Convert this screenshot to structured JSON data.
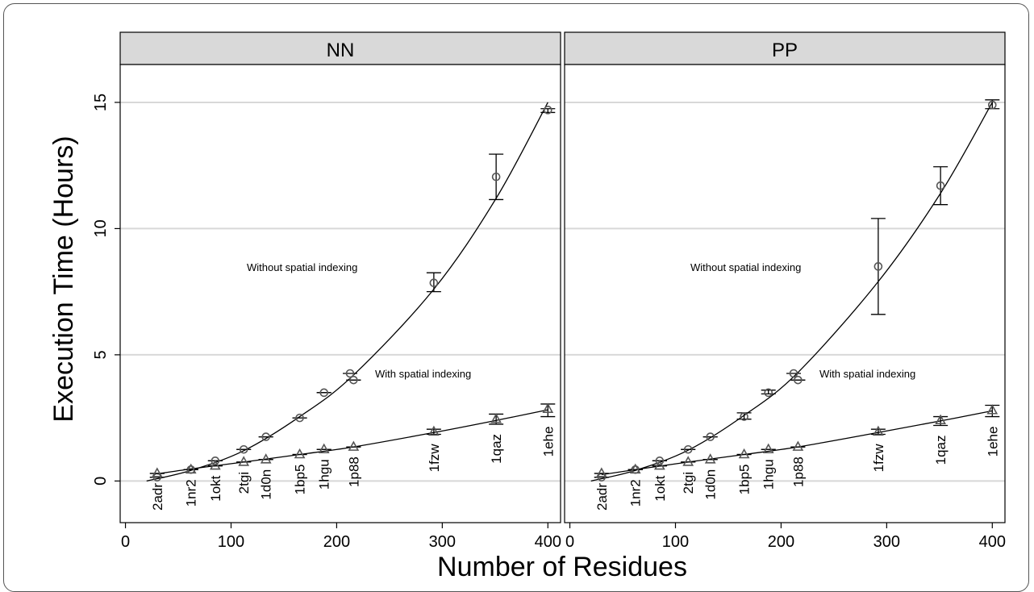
{
  "chart_data": {
    "type": "scatter",
    "ylabel": "Execution Time (Hours)",
    "xlabel": "Number of Residues",
    "xlim": [
      -5,
      412
    ],
    "ylim": [
      -1.65,
      16.5
    ],
    "x_ticks": [
      0,
      100,
      200,
      300,
      400
    ],
    "y_ticks": [
      0,
      5,
      10,
      15
    ],
    "grid": "horizontal",
    "proteins": [
      {
        "id": "2adr",
        "x": 30
      },
      {
        "id": "1nr2",
        "x": 62
      },
      {
        "id": "1okt",
        "x": 85
      },
      {
        "id": "2tgi",
        "x": 112
      },
      {
        "id": "1d0n",
        "x": 133
      },
      {
        "id": "1bp5",
        "x": 165
      },
      {
        "id": "1hgu",
        "x": 188
      },
      {
        "id": "1p88",
        "x": 216
      },
      {
        "id": "1fzw",
        "x": 292
      },
      {
        "id": "1qaz",
        "x": 351
      },
      {
        "id": "1ehe",
        "x": 400
      }
    ],
    "panels": [
      {
        "title": "NN",
        "annotation_without": "Without spatial indexing",
        "annotation_with": "With spatial indexing",
        "series": [
          {
            "marker": "circle",
            "points": [
              {
                "x": 30,
                "y": 0.15,
                "lo": 0.15,
                "hi": 0.15
              },
              {
                "x": 62,
                "y": 0.45,
                "lo": 0.45,
                "hi": 0.45
              },
              {
                "x": 85,
                "y": 0.8,
                "lo": 0.8,
                "hi": 0.8
              },
              {
                "x": 112,
                "y": 1.25,
                "lo": 1.25,
                "hi": 1.25
              },
              {
                "x": 133,
                "y": 1.75,
                "lo": 1.75,
                "hi": 1.75
              },
              {
                "x": 165,
                "y": 2.5,
                "lo": 2.5,
                "hi": 2.5
              },
              {
                "x": 188,
                "y": 3.5,
                "lo": 3.5,
                "hi": 3.5
              },
              {
                "x": 216,
                "y": 4.0,
                "lo": 4.0,
                "hi": 4.0
              },
              {
                "x": 292,
                "y": 7.85,
                "lo": 7.5,
                "hi": 8.25
              },
              {
                "x": 351,
                "y": 12.05,
                "lo": 11.15,
                "hi": 12.95
              },
              {
                "x": 400,
                "y": 14.7,
                "lo": 14.6,
                "hi": 14.75
              }
            ],
            "curve": [
              [
                20,
                0.0
              ],
              [
                62,
                0.42
              ],
              [
                112,
                1.2
              ],
              [
                165,
                2.55
              ],
              [
                216,
                4.2
              ],
              [
                292,
                7.6
              ],
              [
                351,
                11.2
              ],
              [
                400,
                15.0
              ]
            ]
          },
          {
            "marker": "triangle",
            "points": [
              {
                "x": 30,
                "y": 0.3,
                "lo": 0.3,
                "hi": 0.3
              },
              {
                "x": 62,
                "y": 0.45,
                "lo": 0.45,
                "hi": 0.45
              },
              {
                "x": 85,
                "y": 0.6,
                "lo": 0.6,
                "hi": 0.6
              },
              {
                "x": 112,
                "y": 0.75,
                "lo": 0.75,
                "hi": 0.75
              },
              {
                "x": 133,
                "y": 0.85,
                "lo": 0.85,
                "hi": 0.85
              },
              {
                "x": 165,
                "y": 1.05,
                "lo": 1.05,
                "hi": 1.05
              },
              {
                "x": 188,
                "y": 1.25,
                "lo": 1.25,
                "hi": 1.25
              },
              {
                "x": 216,
                "y": 1.35,
                "lo": 1.35,
                "hi": 1.35
              },
              {
                "x": 292,
                "y": 1.95,
                "lo": 1.85,
                "hi": 2.05
              },
              {
                "x": 351,
                "y": 2.45,
                "lo": 2.25,
                "hi": 2.65
              },
              {
                "x": 400,
                "y": 2.85,
                "lo": 2.55,
                "hi": 3.05
              }
            ],
            "curve": [
              [
                30,
                0.28
              ],
              [
                62,
                0.48
              ],
              [
                112,
                0.75
              ],
              [
                165,
                1.05
              ],
              [
                216,
                1.35
              ],
              [
                292,
                1.92
              ],
              [
                351,
                2.4
              ],
              [
                400,
                2.82
              ]
            ]
          }
        ]
      },
      {
        "title": "PP",
        "annotation_without": "Without spatial indexing",
        "annotation_with": "With spatial indexing",
        "series": [
          {
            "marker": "circle",
            "points": [
              {
                "x": 30,
                "y": 0.15,
                "lo": 0.15,
                "hi": 0.15
              },
              {
                "x": 62,
                "y": 0.45,
                "lo": 0.45,
                "hi": 0.45
              },
              {
                "x": 85,
                "y": 0.8,
                "lo": 0.8,
                "hi": 0.8
              },
              {
                "x": 112,
                "y": 1.25,
                "lo": 1.25,
                "hi": 1.25
              },
              {
                "x": 133,
                "y": 1.75,
                "lo": 1.75,
                "hi": 1.75
              },
              {
                "x": 165,
                "y": 2.55,
                "lo": 2.45,
                "hi": 2.7
              },
              {
                "x": 188,
                "y": 3.5,
                "lo": 3.45,
                "hi": 3.6
              },
              {
                "x": 216,
                "y": 4.0,
                "lo": 4.0,
                "hi": 4.0
              },
              {
                "x": 292,
                "y": 8.5,
                "lo": 6.6,
                "hi": 10.4
              },
              {
                "x": 351,
                "y": 11.7,
                "lo": 10.95,
                "hi": 12.45
              },
              {
                "x": 400,
                "y": 14.9,
                "lo": 14.75,
                "hi": 15.1
              }
            ],
            "curve": [
              [
                20,
                0.0
              ],
              [
                62,
                0.42
              ],
              [
                112,
                1.22
              ],
              [
                165,
                2.6
              ],
              [
                216,
                4.3
              ],
              [
                292,
                7.9
              ],
              [
                351,
                11.4
              ],
              [
                400,
                15.0
              ]
            ]
          },
          {
            "marker": "triangle",
            "points": [
              {
                "x": 30,
                "y": 0.3,
                "lo": 0.3,
                "hi": 0.3
              },
              {
                "x": 62,
                "y": 0.45,
                "lo": 0.45,
                "hi": 0.45
              },
              {
                "x": 85,
                "y": 0.6,
                "lo": 0.6,
                "hi": 0.6
              },
              {
                "x": 112,
                "y": 0.75,
                "lo": 0.75,
                "hi": 0.75
              },
              {
                "x": 133,
                "y": 0.85,
                "lo": 0.85,
                "hi": 0.85
              },
              {
                "x": 165,
                "y": 1.05,
                "lo": 1.05,
                "hi": 1.05
              },
              {
                "x": 188,
                "y": 1.25,
                "lo": 1.25,
                "hi": 1.25
              },
              {
                "x": 216,
                "y": 1.35,
                "lo": 1.35,
                "hi": 1.35
              },
              {
                "x": 292,
                "y": 1.95,
                "lo": 1.85,
                "hi": 2.05
              },
              {
                "x": 351,
                "y": 2.4,
                "lo": 2.2,
                "hi": 2.55
              },
              {
                "x": 400,
                "y": 2.8,
                "lo": 2.55,
                "hi": 3.0
              }
            ],
            "curve": [
              [
                30,
                0.25
              ],
              [
                62,
                0.45
              ],
              [
                112,
                0.75
              ],
              [
                165,
                1.05
              ],
              [
                216,
                1.35
              ],
              [
                292,
                1.92
              ],
              [
                351,
                2.38
              ],
              [
                400,
                2.78
              ]
            ]
          }
        ]
      }
    ]
  }
}
